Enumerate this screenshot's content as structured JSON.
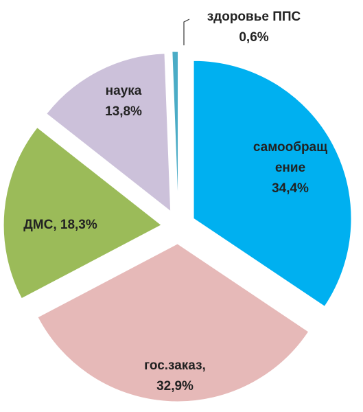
{
  "chart_data": {
    "type": "pie",
    "categories": [
      "самообращение",
      "гос.заказ,",
      "ДМС,",
      "наука",
      "здоровье ППС"
    ],
    "values": [
      34.4,
      32.9,
      18.3,
      13.8,
      0.6
    ],
    "value_labels": [
      "34,4%",
      "32,9%",
      "18,3%",
      "13,8%",
      "0,6%"
    ],
    "colors": [
      "#00b0f0",
      "#e6b9b8",
      "#9bbb59",
      "#ccc1da",
      "#4bacc6"
    ],
    "exploded": true
  }
}
